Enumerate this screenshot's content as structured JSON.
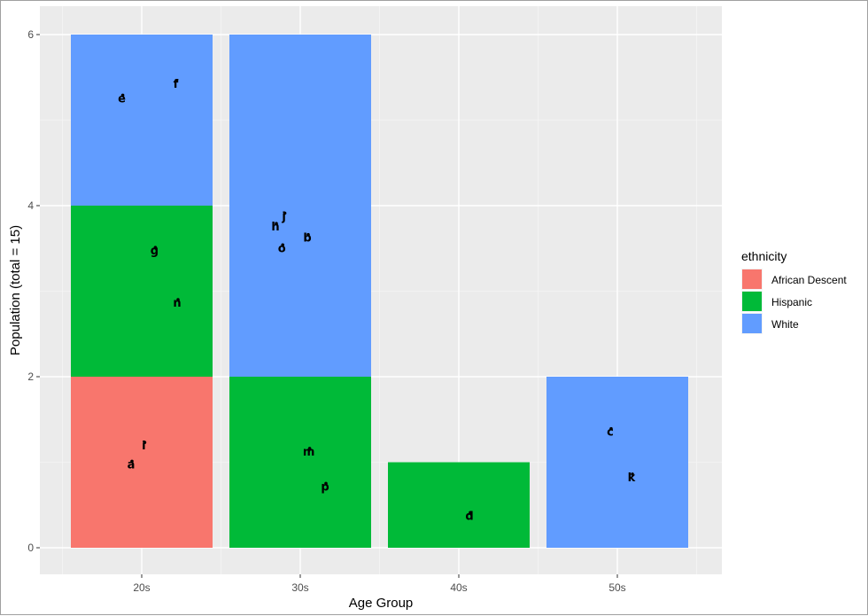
{
  "chart_data": {
    "type": "bar",
    "stacked": true,
    "xlabel": "Age Group",
    "ylabel": "Population (total = 15)",
    "categories": [
      "20s",
      "30s",
      "40s",
      "50s"
    ],
    "ylim": [
      0,
      6
    ],
    "yticks": [
      0,
      2,
      4,
      6
    ],
    "grid": true,
    "legend": {
      "title": "ethnicity",
      "placement": "right",
      "entries": [
        {
          "name": "African Descent",
          "color": "#F8766D"
        },
        {
          "name": "Hispanic",
          "color": "#00BA38"
        },
        {
          "name": "White",
          "color": "#619CFF"
        }
      ]
    },
    "series": [
      {
        "name": "African Descent",
        "color": "#F8766D",
        "values": [
          2,
          0,
          0,
          0
        ]
      },
      {
        "name": "Hispanic",
        "color": "#00BA38",
        "values": [
          2,
          2,
          1,
          0
        ]
      },
      {
        "name": "White",
        "color": "#619CFF",
        "values": [
          2,
          4,
          0,
          2
        ]
      }
    ],
    "points": [
      {
        "label": "a",
        "category": "20s",
        "dx": -0.15,
        "y": 0.97
      },
      {
        "label": "i",
        "category": "20s",
        "dx": 0.03,
        "y": 1.19
      },
      {
        "label": "g",
        "category": "20s",
        "dx": 0.18,
        "y": 3.47
      },
      {
        "label": "n",
        "category": "20s",
        "dx": 0.5,
        "y": 2.86
      },
      {
        "label": "e",
        "category": "20s",
        "dx": -0.28,
        "y": 5.25
      },
      {
        "label": "f",
        "category": "20s",
        "dx": 0.48,
        "y": 5.42
      },
      {
        "label": "m",
        "category": "30s",
        "dx": 0.12,
        "y": 1.12
      },
      {
        "label": "p",
        "category": "30s",
        "dx": 0.35,
        "y": 0.71
      },
      {
        "label": "h",
        "category": "30s",
        "dx": -0.35,
        "y": 3.75
      },
      {
        "label": "j",
        "category": "30s",
        "dx": -0.23,
        "y": 3.87
      },
      {
        "label": "o",
        "category": "30s",
        "dx": -0.26,
        "y": 3.5
      },
      {
        "label": "b",
        "category": "30s",
        "dx": 0.1,
        "y": 3.62
      },
      {
        "label": "d",
        "category": "40s",
        "dx": 0.15,
        "y": 0.37
      },
      {
        "label": "c",
        "category": "50s",
        "dx": -0.1,
        "y": 1.35
      },
      {
        "label": "k",
        "category": "50s",
        "dx": 0.2,
        "y": 0.82
      }
    ]
  }
}
